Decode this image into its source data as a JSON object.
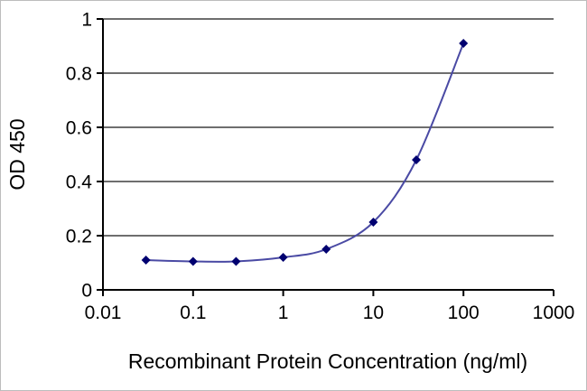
{
  "chart_data": {
    "type": "line",
    "title": "",
    "xlabel": "Recombinant Protein Concentration (ng/ml)",
    "ylabel": "OD 450",
    "x_scale": "log",
    "x": [
      0.03,
      0.1,
      0.3,
      1,
      3,
      10,
      30,
      100
    ],
    "y": [
      0.11,
      0.105,
      0.105,
      0.12,
      0.15,
      0.25,
      0.48,
      0.91
    ],
    "xlim": [
      0.01,
      1000
    ],
    "ylim": [
      0,
      1
    ],
    "x_tick_labels": [
      "0.01",
      "0.1",
      "1",
      "10",
      "100",
      "1000"
    ],
    "y_tick_labels": [
      "0",
      "0.2",
      "0.4",
      "0.6",
      "0.8",
      "1"
    ],
    "grid": "horizontal-only",
    "legend": "none",
    "line_color": "#4a4aa4",
    "marker": "diamond",
    "marker_color": "#000070",
    "axis_color": "#000000",
    "grid_color": "#595959"
  }
}
